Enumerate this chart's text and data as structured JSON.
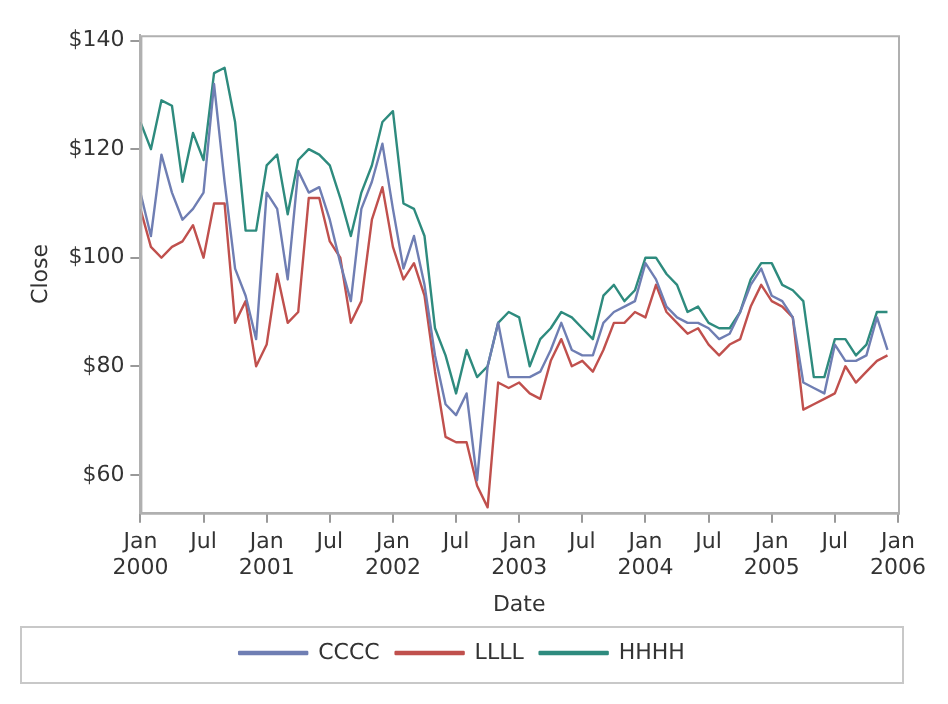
{
  "chart_data": {
    "type": "line",
    "xlabel": "Date",
    "ylabel": "Close",
    "x": [
      "2000-01",
      "2000-02",
      "2000-03",
      "2000-04",
      "2000-05",
      "2000-06",
      "2000-07",
      "2000-08",
      "2000-09",
      "2000-10",
      "2000-11",
      "2000-12",
      "2001-01",
      "2001-02",
      "2001-03",
      "2001-04",
      "2001-05",
      "2001-06",
      "2001-07",
      "2001-08",
      "2001-09",
      "2001-10",
      "2001-11",
      "2001-12",
      "2002-01",
      "2002-02",
      "2002-03",
      "2002-04",
      "2002-05",
      "2002-06",
      "2002-07",
      "2002-08",
      "2002-09",
      "2002-10",
      "2002-11",
      "2002-12",
      "2003-01",
      "2003-02",
      "2003-03",
      "2003-04",
      "2003-05",
      "2003-06",
      "2003-07",
      "2003-08",
      "2003-09",
      "2003-10",
      "2003-11",
      "2003-12",
      "2004-01",
      "2004-02",
      "2004-03",
      "2004-04",
      "2004-05",
      "2004-06",
      "2004-07",
      "2004-08",
      "2004-09",
      "2004-10",
      "2004-11",
      "2004-12",
      "2005-01",
      "2005-02",
      "2005-03",
      "2005-04",
      "2005-05",
      "2005-06",
      "2005-07",
      "2005-08",
      "2005-09",
      "2005-10",
      "2005-11",
      "2005-12"
    ],
    "series": [
      {
        "name": "CCCC",
        "color": "#6f7eb3",
        "values": [
          112,
          104,
          119,
          112,
          107,
          109,
          112,
          132,
          114,
          98,
          93,
          85,
          112,
          109,
          96,
          116,
          112,
          113,
          107,
          99,
          92,
          109,
          114,
          121,
          109,
          98,
          104,
          95,
          82,
          73,
          71,
          75,
          59,
          80,
          88,
          78,
          78,
          78,
          79,
          83,
          88,
          83,
          82,
          82,
          88,
          90,
          91,
          92,
          99,
          96,
          91,
          89,
          88,
          88,
          87,
          85,
          86,
          90,
          95,
          98,
          93,
          92,
          89,
          77,
          76,
          75,
          84,
          81,
          81,
          82,
          89,
          83
        ]
      },
      {
        "name": "LLLL",
        "color": "#c0504d",
        "values": [
          109,
          102,
          100,
          102,
          103,
          106,
          100,
          110,
          110,
          88,
          92,
          80,
          84,
          97,
          88,
          90,
          111,
          111,
          103,
          100,
          88,
          92,
          107,
          113,
          102,
          96,
          99,
          93,
          79,
          67,
          66,
          66,
          58,
          54,
          77,
          76,
          77,
          75,
          74,
          81,
          85,
          80,
          81,
          79,
          83,
          88,
          88,
          90,
          89,
          95,
          90,
          88,
          86,
          87,
          84,
          82,
          84,
          85,
          91,
          95,
          92,
          91,
          89,
          72,
          73,
          74,
          75,
          80,
          77,
          79,
          81,
          82
        ]
      },
      {
        "name": "HHHH",
        "color": "#2e8b7e",
        "values": [
          125,
          120,
          129,
          128,
          114,
          123,
          118,
          134,
          135,
          125,
          105,
          105,
          117,
          119,
          108,
          118,
          120,
          119,
          117,
          111,
          104,
          112,
          117,
          125,
          127,
          110,
          109,
          104,
          87,
          82,
          75,
          83,
          78,
          80,
          88,
          90,
          89,
          80,
          85,
          87,
          90,
          89,
          87,
          85,
          93,
          95,
          92,
          94,
          100,
          100,
          97,
          95,
          90,
          91,
          88,
          87,
          87,
          90,
          96,
          99,
          99,
          95,
          94,
          92,
          78,
          78,
          85,
          85,
          82,
          84,
          90,
          90
        ]
      }
    ],
    "xlim": [
      "2000-01",
      "2006-01"
    ],
    "xticks": [
      {
        "value": "2000-01",
        "label": "Jan 2000"
      },
      {
        "value": "2000-07",
        "label": "Jul"
      },
      {
        "value": "2001-01",
        "label": "Jan 2001"
      },
      {
        "value": "2001-07",
        "label": "Jul"
      },
      {
        "value": "2002-01",
        "label": "Jan 2002"
      },
      {
        "value": "2002-07",
        "label": "Jul"
      },
      {
        "value": "2003-01",
        "label": "Jan 2003"
      },
      {
        "value": "2003-07",
        "label": "Jul"
      },
      {
        "value": "2004-01",
        "label": "Jan 2004"
      },
      {
        "value": "2004-07",
        "label": "Jul"
      },
      {
        "value": "2005-01",
        "label": "Jan 2005"
      },
      {
        "value": "2005-07",
        "label": "Jul"
      },
      {
        "value": "2006-01",
        "label": "Jan 2006"
      }
    ],
    "ylim": [
      53,
      141
    ],
    "yticks": [
      {
        "value": 60,
        "label": "$60"
      },
      {
        "value": 80,
        "label": "$80"
      },
      {
        "value": 100,
        "label": "$100"
      },
      {
        "value": 120,
        "label": "$120"
      },
      {
        "value": 140,
        "label": "$140"
      }
    ],
    "grid": false,
    "legend": "bottom",
    "marker": "none",
    "line_style": "solid"
  }
}
